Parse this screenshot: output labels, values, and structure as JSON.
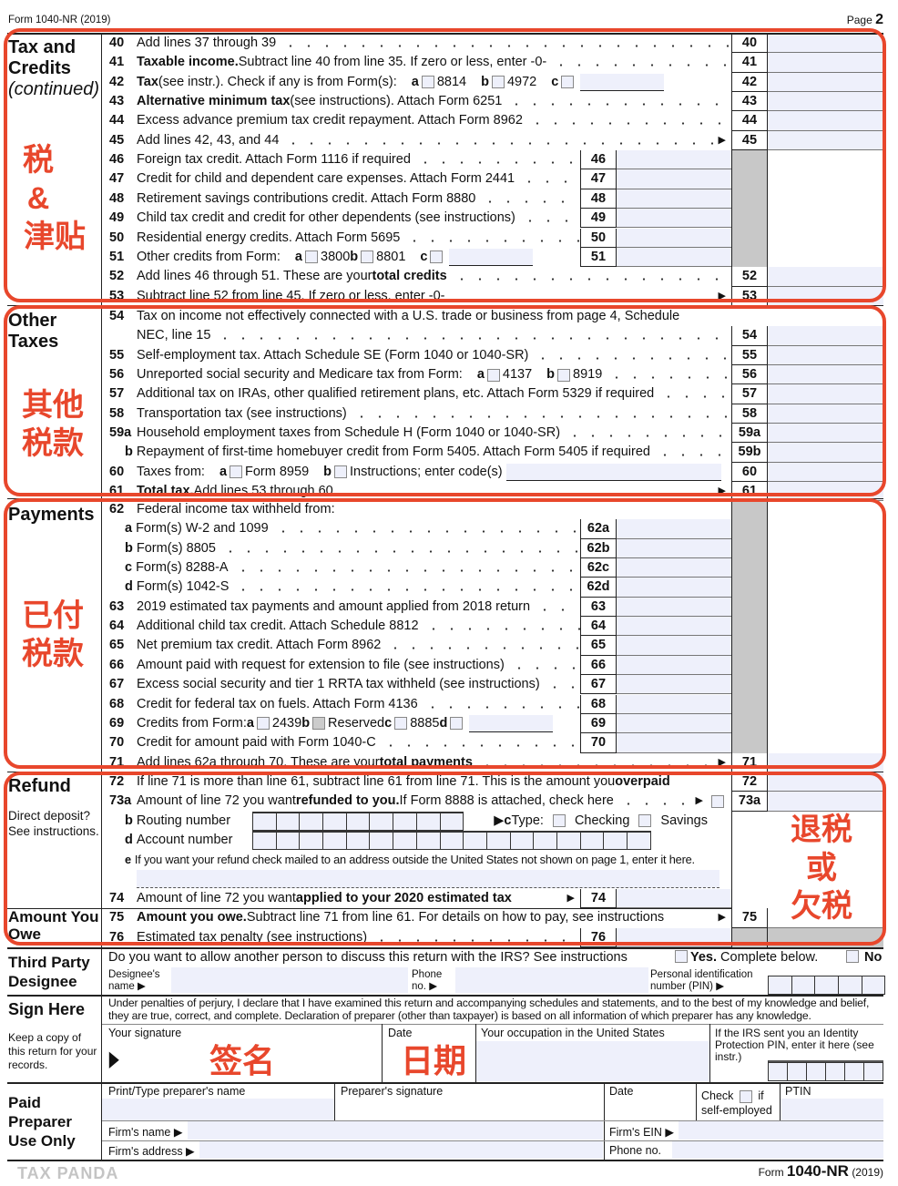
{
  "header": {
    "form": "Form 1040-NR (2019)",
    "page_label": "Page",
    "page_num": "2"
  },
  "colors": {
    "annotation": "#e8472c",
    "field": "#eef0fb",
    "shade": "#c8c8c8"
  },
  "sections": [
    {
      "title": "Tax and",
      "title2": "Credits",
      "subtitle": "(continued)",
      "cn": [
        "税",
        "&",
        "津贴"
      ],
      "lines": [
        {
          "n": "40",
          "s": [
            {
              "t": "Add lines 37 through 39"
            }
          ],
          "box": "right"
        },
        {
          "n": "41",
          "s": [
            {
              "b": "Taxable income."
            },
            {
              "t": " Subtract line 40 from line 35. If zero or less, enter -0-"
            }
          ],
          "box": "right"
        },
        {
          "n": "42",
          "s": [
            {
              "b": "Tax"
            },
            {
              "t": " (see instr.). Check if any is from Form(s):"
            },
            {
              "gap": 1
            },
            {
              "b": "a"
            },
            {
              "cb": 1
            },
            {
              "t": "8814"
            },
            {
              "gap": 1
            },
            {
              "b": "b"
            },
            {
              "cb": 1
            },
            {
              "t": "4972"
            },
            {
              "gap": 1
            },
            {
              "b": "c"
            },
            {
              "cb": 1
            },
            {
              "field": 1
            }
          ],
          "box": "right",
          "nodots": true
        },
        {
          "n": "43",
          "s": [
            {
              "b": "Alternative minimum tax"
            },
            {
              "t": " (see instructions). Attach Form 6251"
            }
          ],
          "box": "right"
        },
        {
          "n": "44",
          "s": [
            {
              "t": "Excess advance premium tax credit repayment. Attach Form 8962"
            }
          ],
          "box": "right"
        },
        {
          "n": "45",
          "s": [
            {
              "t": "Add lines 42, 43, and 44"
            }
          ],
          "box": "right",
          "arrow": true
        },
        {
          "n": "46",
          "s": [
            {
              "t": "Foreign tax credit. Attach Form 1116 if required"
            }
          ],
          "box": "inner",
          "shade": true
        },
        {
          "n": "47",
          "s": [
            {
              "t": "Credit for child and dependent care expenses. Attach Form 2441"
            }
          ],
          "box": "inner",
          "shade": true
        },
        {
          "n": "48",
          "s": [
            {
              "t": "Retirement savings contributions credit. Attach Form 8880"
            }
          ],
          "box": "inner",
          "shade": true
        },
        {
          "n": "49",
          "s": [
            {
              "t": "Child tax credit and credit for other dependents (see instructions)"
            }
          ],
          "box": "inner",
          "shade": true
        },
        {
          "n": "50",
          "s": [
            {
              "t": "Residential energy credits. Attach Form 5695"
            }
          ],
          "box": "inner",
          "shade": true
        },
        {
          "n": "51",
          "s": [
            {
              "t": "Other credits from Form:"
            },
            {
              "gap": 1
            },
            {
              "b": "a"
            },
            {
              "cb": 1
            },
            {
              "t": "3800 "
            },
            {
              "b": "b"
            },
            {
              "cb": 1
            },
            {
              "t": "8801 "
            },
            {
              "gap": 1
            },
            {
              "b": "c"
            },
            {
              "cb": 1
            },
            {
              "field": 1
            }
          ],
          "box": "inner",
          "shade": true,
          "nodots": true
        },
        {
          "n": "52",
          "s": [
            {
              "t": "Add lines 46 through 51. These are your "
            },
            {
              "b": "total credits"
            }
          ],
          "box": "right"
        },
        {
          "n": "53",
          "s": [
            {
              "t": "Subtract line 52 from line 45. If zero or less, enter -0-"
            }
          ],
          "box": "right",
          "arrow": true,
          "nodots": true
        }
      ]
    },
    {
      "title": "Other",
      "title2": "Taxes",
      "cn": [
        "其他",
        "税款"
      ],
      "lines": [
        {
          "n": "54",
          "s": [
            {
              "t": "Tax on income not effectively connected with a U.S. trade or business from page 4, Schedule"
            }
          ],
          "s2": [
            {
              "t": "NEC, line 15"
            }
          ],
          "box": "right",
          "nodots": true
        },
        {
          "n": "55",
          "s": [
            {
              "t": "Self-employment tax. Attach Schedule SE (Form 1040 or 1040-SR)"
            }
          ],
          "box": "right"
        },
        {
          "n": "56",
          "s": [
            {
              "t": "Unreported social security and Medicare tax from Form:"
            },
            {
              "gap": 1
            },
            {
              "b": "a"
            },
            {
              "cb": 1
            },
            {
              "t": "4137"
            },
            {
              "gap": 1
            },
            {
              "b": "b"
            },
            {
              "cb": 1
            },
            {
              "t": "8919"
            }
          ],
          "box": "right"
        },
        {
          "n": "57",
          "s": [
            {
              "t": "Additional tax on IRAs, other qualified retirement plans, etc. Attach Form 5329 if required"
            }
          ],
          "box": "right"
        },
        {
          "n": "58",
          "s": [
            {
              "t": "Transportation tax (see instructions)"
            }
          ],
          "box": "right"
        },
        {
          "n": "59a",
          "s": [
            {
              "t": "Household employment taxes from Schedule H (Form 1040 or 1040-SR)"
            }
          ],
          "box": "right"
        },
        {
          "n": "",
          "sub": "b",
          "bn": "59b",
          "s": [
            {
              "t": "Repayment of first-time homebuyer credit from Form 5405. Attach Form 5405 if required"
            }
          ],
          "box": "right"
        },
        {
          "n": "60",
          "s": [
            {
              "t": "Taxes from:"
            },
            {
              "gap": 1
            },
            {
              "b": "a"
            },
            {
              "cb": 1
            },
            {
              "t": "Form 8959"
            },
            {
              "gap": 1
            },
            {
              "b": "b"
            },
            {
              "cb": 1
            },
            {
              "t": "Instructions; enter code(s)"
            },
            {
              "field": 2
            }
          ],
          "box": "right",
          "nodots": true
        },
        {
          "n": "61",
          "s": [
            {
              "b": "Total tax."
            },
            {
              "t": " Add lines 53 through 60"
            }
          ],
          "box": "right",
          "arrow": true
        }
      ]
    },
    {
      "title": "Payments",
      "cn": [
        "已付",
        "税款"
      ],
      "lines": [
        {
          "n": "62",
          "s": [
            {
              "t": "Federal income tax withheld from:"
            }
          ],
          "box": "none",
          "shade": true,
          "nodots": true
        },
        {
          "n": "",
          "sub": "a",
          "bn": "62a",
          "s": [
            {
              "t": "Form(s) W-2 and 1099"
            }
          ],
          "box": "inner",
          "shade": true
        },
        {
          "n": "",
          "sub": "b",
          "bn": "62b",
          "s": [
            {
              "t": "Form(s) 8805"
            }
          ],
          "box": "inner",
          "shade": true
        },
        {
          "n": "",
          "sub": "c",
          "bn": "62c",
          "s": [
            {
              "t": "Form(s) 8288-A"
            }
          ],
          "box": "inner",
          "shade": true
        },
        {
          "n": "",
          "sub": "d",
          "bn": "62d",
          "s": [
            {
              "t": "Form(s) 1042-S"
            }
          ],
          "box": "inner",
          "shade": true
        },
        {
          "n": "63",
          "s": [
            {
              "t": "2019 estimated tax payments and amount applied from 2018 return"
            }
          ],
          "box": "inner",
          "shade": true
        },
        {
          "n": "64",
          "s": [
            {
              "t": "Additional child tax credit. Attach Schedule 8812"
            }
          ],
          "box": "inner",
          "shade": true
        },
        {
          "n": "65",
          "s": [
            {
              "t": "Net premium tax credit. Attach Form 8962"
            }
          ],
          "box": "inner",
          "shade": true
        },
        {
          "n": "66",
          "s": [
            {
              "t": "Amount paid with request for extension to file (see instructions)"
            }
          ],
          "box": "inner",
          "shade": true
        },
        {
          "n": "67",
          "s": [
            {
              "t": "Excess social security and tier 1 RRTA tax withheld (see instructions)"
            }
          ],
          "box": "inner",
          "shade": true
        },
        {
          "n": "68",
          "s": [
            {
              "t": "Credit for federal tax on fuels. Attach Form 4136"
            }
          ],
          "box": "inner",
          "shade": true
        },
        {
          "n": "69",
          "s": [
            {
              "t": "Credits from Form: "
            },
            {
              "b": "a"
            },
            {
              "cb": 1
            },
            {
              "t": "2439 "
            },
            {
              "b": "b"
            },
            {
              "cbgray": 1
            },
            {
              "t": "Reserved "
            },
            {
              "b": "c"
            },
            {
              "cb": 1
            },
            {
              "t": "8885 "
            },
            {
              "b": " d"
            },
            {
              "cb": 1
            },
            {
              "field": 1
            }
          ],
          "box": "inner",
          "shade": true,
          "nodots": true
        },
        {
          "n": "70",
          "s": [
            {
              "t": "Credit for amount paid with Form 1040-C"
            }
          ],
          "box": "inner",
          "shade": true
        },
        {
          "n": "71",
          "s": [
            {
              "t": "Add lines 62a through 70. These are your "
            },
            {
              "b": "total payments"
            }
          ],
          "box": "right",
          "arrow": true
        }
      ]
    },
    {
      "title": "Refund",
      "note": "Direct deposit? See instructions.",
      "title3": "Amount You Owe",
      "cn": [
        "退税",
        "或",
        "欠税"
      ],
      "lines": [
        {
          "n": "72",
          "s": [
            {
              "t": "If line 71 is more than line 61, subtract line 61 from line 71. This is the amount you "
            },
            {
              "b": "overpaid"
            }
          ],
          "box": "right",
          "nodots": true
        },
        {
          "n": "73a",
          "s": [
            {
              "t": "Amount of line 72 you want "
            },
            {
              "b": "refunded to you."
            },
            {
              "t": " If Form 8888 is attached, check here"
            }
          ],
          "box": "right",
          "arrow": true,
          "endcb": true
        },
        {
          "n": "",
          "sub": "b",
          "s": [
            {
              "t": "Routing number"
            }
          ],
          "box": "none",
          "nodots": true,
          "routing": 9,
          "type_label": "Type:",
          "type_letter": "c",
          "checking": "Checking",
          "savings": "Savings"
        },
        {
          "n": "",
          "sub": "d",
          "s": [
            {
              "t": "Account number"
            }
          ],
          "box": "none",
          "nodots": true,
          "account": 17
        },
        {
          "n": "",
          "sub": "e",
          "s": [
            {
              "t": "If you want your refund check mailed to an address outside the United States not shown on page 1, enter it here."
            }
          ],
          "box": "none",
          "nodots": true,
          "smaller": true
        },
        {
          "n": "",
          "s": [],
          "box": "none",
          "nodots": true,
          "addr": true
        },
        {
          "n": "74",
          "s": [
            {
              "t": "Amount of line 72 you want "
            },
            {
              "b": "applied to your 2020 estimated tax"
            }
          ],
          "box": "inner",
          "arrow": true,
          "nodots": true
        },
        {
          "n": "75",
          "s": [
            {
              "b": "Amount you owe."
            },
            {
              "t": " Subtract line 71 from line 61. For details on how to pay, see instructions"
            }
          ],
          "box": "right",
          "arrow": true,
          "nodots": true
        },
        {
          "n": "76",
          "s": [
            {
              "t": "Estimated tax penalty (see instructions)"
            }
          ],
          "box": "inner",
          "shade": true
        }
      ]
    }
  ],
  "designee": {
    "title": "Third Party Designee",
    "question": "Do you want to allow another person to discuss this return with the IRS? See instructions",
    "yes_bold": "Yes.",
    "yes_rest": " Complete below.",
    "no": "No",
    "name_label": "Designee's name",
    "phone_label": "Phone no.",
    "pin_label": "Personal identification number (PIN)"
  },
  "sign": {
    "title": "Sign Here",
    "keep": "Keep a copy of this return for your records.",
    "perjury": "Under penalties of perjury, I declare that I have examined this return and accompanying schedules and statements, and to the best of my knowledge and belief, they are true, correct, and complete. Declaration of preparer (other than taxpayer) is based on all information of which preparer has any knowledge.",
    "your_signature": "Your signature",
    "date": "Date",
    "occupation": "Your occupation in the United States",
    "ip_pin": "If the IRS sent you an Identity Protection PIN, enter it here (see instr.)",
    "cn_signature": "签名",
    "cn_date": "日期"
  },
  "preparer": {
    "title": "Paid Preparer Use Only",
    "name": "Print/Type preparer's name",
    "signature": "Preparer's signature",
    "date": "Date",
    "check": "Check",
    "if": "if",
    "self_employed": "self-employed",
    "ptin": "PTIN",
    "firm_name": "Firm's name",
    "firm_ein": "Firm's EIN",
    "firm_address": "Firm's address",
    "phone": "Phone no."
  },
  "footer": {
    "watermark": "TAX PANDA",
    "form_prefix": "Form",
    "form_name": "1040-NR",
    "year": "(2019)"
  }
}
